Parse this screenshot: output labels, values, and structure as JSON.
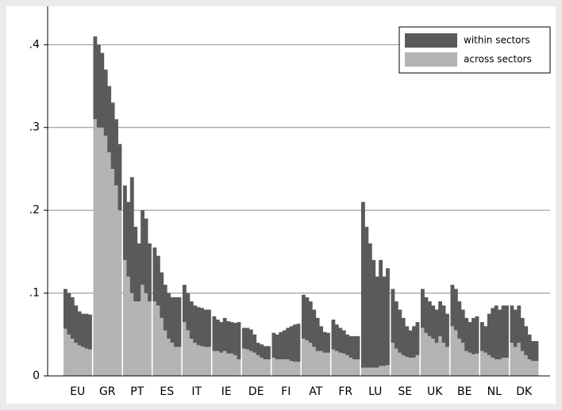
{
  "chart_data": {
    "type": "bar",
    "stacked": true,
    "categories": [
      null,
      null,
      null,
      "EU",
      null,
      null,
      null,
      null,
      null,
      null,
      null,
      "GR",
      null,
      null,
      null,
      null,
      null,
      null,
      null,
      "PT",
      null,
      null,
      null,
      null,
      null,
      null,
      null,
      "ES",
      null,
      null,
      null,
      null,
      null,
      null,
      null,
      "IT",
      null,
      null,
      null,
      null,
      null,
      null,
      null,
      "IE",
      null,
      null,
      null,
      null,
      null,
      null,
      null,
      "DE",
      null,
      null,
      null,
      null,
      null,
      null,
      null,
      "FI",
      null,
      null,
      null,
      null,
      null,
      null,
      null,
      "AT",
      null,
      null,
      null,
      null,
      null,
      null,
      null,
      "FR",
      null,
      null,
      null,
      null,
      null,
      null,
      null,
      "LU",
      null,
      null,
      null,
      null,
      null,
      null,
      null,
      "SE",
      null,
      null,
      null,
      null,
      null,
      null,
      null,
      "UK",
      null,
      null,
      null,
      null,
      null,
      null,
      null,
      "BE",
      null,
      null,
      null,
      null,
      null,
      null,
      null,
      "NL",
      null,
      null,
      null,
      null,
      null,
      null,
      null,
      "DK",
      null,
      null,
      null,
      null
    ],
    "series": [
      {
        "name": "within sectors",
        "color": "#5a5a5a",
        "values": [
          0.048,
          0.05,
          0.05,
          0.045,
          0.041,
          0.04,
          0.042,
          0.042,
          0.1,
          0.1,
          0.09,
          0.08,
          0.08,
          0.08,
          0.08,
          0.08,
          0.09,
          0.09,
          0.14,
          0.09,
          0.07,
          0.09,
          0.09,
          0.07,
          0.065,
          0.06,
          0.055,
          0.055,
          0.055,
          0.055,
          0.06,
          0.06,
          0.045,
          0.045,
          0.045,
          0.045,
          0.046,
          0.046,
          0.045,
          0.045,
          0.042,
          0.038,
          0.037,
          0.04,
          0.039,
          0.038,
          0.039,
          0.045,
          0.025,
          0.026,
          0.026,
          0.022,
          0.015,
          0.016,
          0.016,
          0.016,
          0.03,
          0.03,
          0.033,
          0.035,
          0.038,
          0.042,
          0.045,
          0.046,
          0.053,
          0.052,
          0.05,
          0.045,
          0.04,
          0.03,
          0.025,
          0.024,
          0.036,
          0.032,
          0.03,
          0.028,
          0.025,
          0.026,
          0.028,
          0.028,
          0.2,
          0.17,
          0.15,
          0.13,
          0.11,
          0.128,
          0.108,
          0.117,
          0.065,
          0.057,
          0.052,
          0.045,
          0.037,
          0.033,
          0.038,
          0.04,
          0.047,
          0.043,
          0.042,
          0.04,
          0.04,
          0.042,
          0.045,
          0.04,
          0.05,
          0.05,
          0.045,
          0.04,
          0.04,
          0.037,
          0.044,
          0.045,
          0.035,
          0.032,
          0.05,
          0.06,
          0.065,
          0.06,
          0.063,
          0.063,
          0.045,
          0.045,
          0.045,
          0.04,
          0.035,
          0.03,
          0.024,
          0.024
        ]
      },
      {
        "name": "across sectors",
        "color": "#b4b4b4",
        "values": [
          0.057,
          0.05,
          0.045,
          0.04,
          0.037,
          0.035,
          0.033,
          0.032,
          0.31,
          0.3,
          0.3,
          0.29,
          0.27,
          0.25,
          0.23,
          0.2,
          0.14,
          0.12,
          0.1,
          0.09,
          0.09,
          0.11,
          0.1,
          0.09,
          0.09,
          0.085,
          0.07,
          0.055,
          0.045,
          0.04,
          0.035,
          0.035,
          0.065,
          0.055,
          0.045,
          0.04,
          0.037,
          0.036,
          0.035,
          0.035,
          0.03,
          0.03,
          0.028,
          0.03,
          0.027,
          0.027,
          0.025,
          0.02,
          0.033,
          0.032,
          0.03,
          0.028,
          0.025,
          0.022,
          0.02,
          0.02,
          0.022,
          0.02,
          0.02,
          0.02,
          0.02,
          0.018,
          0.017,
          0.017,
          0.045,
          0.043,
          0.04,
          0.035,
          0.03,
          0.03,
          0.028,
          0.028,
          0.032,
          0.03,
          0.028,
          0.027,
          0.025,
          0.022,
          0.02,
          0.02,
          0.01,
          0.01,
          0.01,
          0.01,
          0.01,
          0.012,
          0.012,
          0.013,
          0.04,
          0.033,
          0.028,
          0.025,
          0.023,
          0.022,
          0.022,
          0.025,
          0.058,
          0.052,
          0.048,
          0.045,
          0.04,
          0.048,
          0.04,
          0.035,
          0.06,
          0.055,
          0.045,
          0.04,
          0.03,
          0.028,
          0.026,
          0.027,
          0.03,
          0.028,
          0.025,
          0.022,
          0.02,
          0.02,
          0.022,
          0.022,
          0.04,
          0.035,
          0.04,
          0.03,
          0.025,
          0.02,
          0.018,
          0.018
        ]
      }
    ],
    "ylim": [
      0,
      0.43
    ],
    "yticks": [
      0,
      {
        "value": 0.1,
        "label": ".1"
      },
      {
        "value": 0.2,
        "label": ".2"
      },
      {
        "value": 0.3,
        "label": ".3"
      },
      {
        "value": 0.4,
        "label": ".4"
      }
    ],
    "grid": true,
    "legend": "top-right"
  }
}
